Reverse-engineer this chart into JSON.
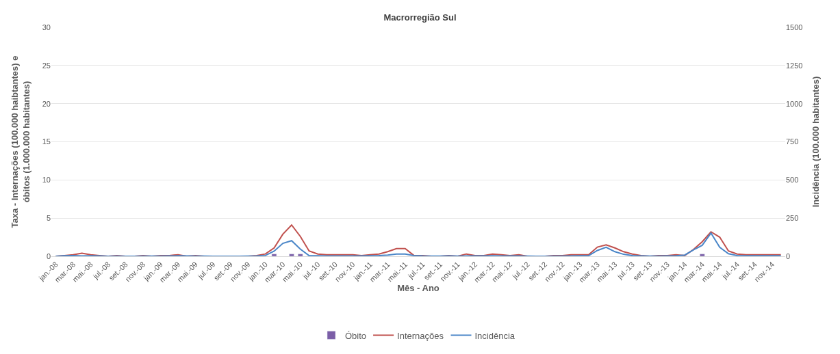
{
  "chart_data": {
    "type": "line",
    "title": "Macrorregião Sul",
    "xlabel": "Mês - Ano",
    "ylabel": "Taxa - Internações (100.000 haibtantes) e óbitos (1.000.000 habitantes)",
    "y2label": "Incidência (100.000 habitantes)",
    "categories": [
      "jan.-08",
      null,
      "mar.-08",
      null,
      "mai.-08",
      null,
      "jul.-08",
      null,
      "set.-08",
      null,
      "nov.-08",
      null,
      "jan.-09",
      null,
      "mar.-09",
      null,
      "mai.-09",
      null,
      "jul.-09",
      null,
      "set.-09",
      null,
      "nov.-09",
      null,
      "jan.-10",
      null,
      "mar.-10",
      null,
      "mai.-10",
      null,
      "jul.-10",
      null,
      "set.-10",
      null,
      "nov.-10",
      null,
      "jan.-11",
      null,
      "mar.-11",
      null,
      "mai.-11",
      null,
      "jul.-11",
      null,
      "set.-11",
      null,
      "nov.-11",
      null,
      "jan.-12",
      null,
      "mar.-12",
      null,
      "mai.-12",
      null,
      "jul.-12",
      null,
      "set.-12",
      null,
      "nov.-12",
      null,
      "jan.-13",
      null,
      "mar.-13",
      null,
      "mai.-13",
      null,
      "jul.-13",
      null,
      "set.-13",
      null,
      "nov.-13",
      null,
      "jan.-14",
      null,
      "mar.-14",
      null,
      "mai.-14",
      null,
      "jul.-14",
      null,
      "set.-14",
      null,
      "nov.-14",
      null
    ],
    "series": [
      {
        "name": "Óbito",
        "type": "bar",
        "color": "#7b5ea7",
        "values": [
          null,
          null,
          null,
          null,
          null,
          null,
          null,
          null,
          null,
          null,
          null,
          null,
          null,
          null,
          null,
          null,
          null,
          null,
          null,
          null,
          null,
          null,
          null,
          null,
          null,
          0.3,
          null,
          0.3,
          0.3,
          null,
          null,
          null,
          null,
          null,
          null,
          null,
          null,
          null,
          null,
          null,
          null,
          null,
          null,
          null,
          null,
          null,
          null,
          null,
          null,
          null,
          null,
          null,
          null,
          null,
          null,
          null,
          null,
          null,
          null,
          null,
          null,
          null,
          null,
          null,
          null,
          null,
          null,
          null,
          null,
          null,
          null,
          null,
          null,
          null,
          0.3,
          null,
          null,
          null,
          null,
          null,
          null,
          null,
          null,
          null
        ]
      },
      {
        "name": "Internações",
        "color": "#c0504d",
        "values": [
          0,
          0.1,
          0.2,
          0.4,
          0.2,
          0.1,
          0,
          0.1,
          0,
          0,
          0.1,
          0,
          0.1,
          0.1,
          0.2,
          0,
          0.1,
          0,
          0,
          0,
          0,
          0,
          0,
          0.1,
          0.3,
          1.1,
          2.9,
          4.1,
          2.6,
          0.7,
          0.3,
          0.2,
          0.2,
          0.2,
          0.2,
          0.1,
          0.2,
          0.3,
          0.6,
          1.0,
          1.0,
          0.1,
          0.1,
          0,
          0,
          0.1,
          0,
          0.3,
          0.1,
          0.1,
          0.3,
          0.2,
          0.1,
          0.2,
          0,
          0,
          0,
          0.1,
          0.1,
          0.2,
          0.2,
          0.2,
          1.2,
          1.5,
          1.1,
          0.6,
          0.3,
          0.1,
          0,
          0.1,
          0.1,
          0.2,
          0.1,
          0.9,
          1.9,
          3.2,
          2.5,
          0.7,
          0.3,
          0.2,
          0.2,
          0.2,
          0.2,
          0.2
        ]
      },
      {
        "name": "Incidência",
        "axis": "y2",
        "color": "#4a86c8",
        "values": [
          0,
          3,
          5,
          2,
          3,
          2,
          0,
          1,
          0,
          0,
          1,
          1,
          1,
          2,
          3,
          2,
          1,
          1,
          0,
          0,
          0,
          0,
          1,
          2,
          5,
          34,
          85,
          102,
          47,
          4,
          3,
          2,
          2,
          2,
          2,
          2,
          3,
          4,
          8,
          15,
          15,
          5,
          2,
          1,
          1,
          2,
          1,
          2,
          2,
          2,
          3,
          2,
          2,
          2,
          1,
          0,
          0,
          1,
          1,
          2,
          3,
          4,
          38,
          59,
          30,
          13,
          4,
          2,
          1,
          1,
          2,
          3,
          8,
          42,
          72,
          152,
          59,
          17,
          5,
          3,
          3,
          3,
          3,
          3
        ]
      }
    ],
    "ylim": [
      0,
      30
    ],
    "yticks": [
      0,
      5,
      10,
      15,
      20,
      25,
      30
    ],
    "y2lim": [
      0,
      1500
    ],
    "y2ticks": [
      0,
      250,
      500,
      750,
      1000,
      1250,
      1500
    ],
    "grid": "y",
    "legend": "bottom",
    "marker": "none",
    "line_style": "solid"
  }
}
